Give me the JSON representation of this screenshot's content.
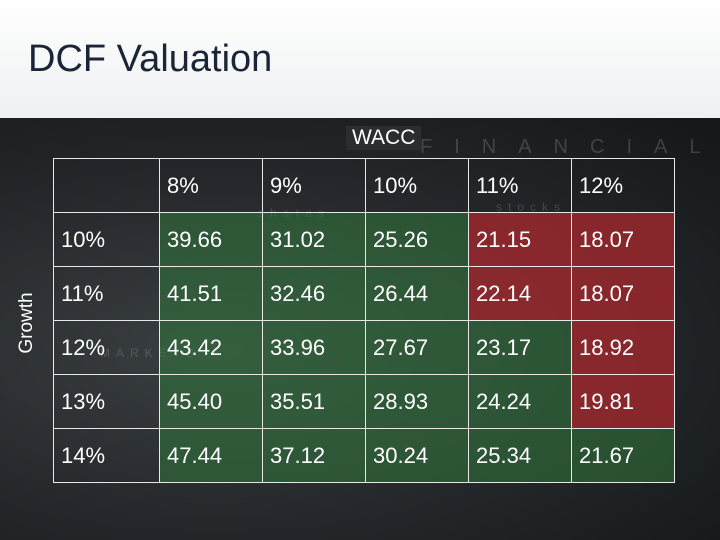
{
  "title": "DCF Valuation",
  "axis": {
    "columns_label": "WACC",
    "rows_label": "Growth"
  },
  "watermark": {
    "w1": "FINANCIALS",
    "w2": "shares",
    "w3": "stocks",
    "w4": "MARKETS"
  },
  "colors": {
    "green": "#327838",
    "red": "#a5282d"
  },
  "table": {
    "columns": [
      "8%",
      "9%",
      "10%",
      "11%",
      "12%"
    ],
    "rows": [
      {
        "growth": "10%",
        "values": [
          "39.66",
          "31.02",
          "25.26",
          "21.15",
          "18.07"
        ]
      },
      {
        "growth": "11%",
        "values": [
          "41.51",
          "32.46",
          "26.44",
          "22.14",
          "18.07"
        ]
      },
      {
        "growth": "12%",
        "values": [
          "43.42",
          "33.96",
          "27.67",
          "23.17",
          "18.92"
        ]
      },
      {
        "growth": "13%",
        "values": [
          "45.40",
          "35.51",
          "28.93",
          "24.24",
          "19.81"
        ]
      },
      {
        "growth": "14%",
        "values": [
          "47.44",
          "37.12",
          "30.24",
          "25.34",
          "21.67"
        ]
      }
    ]
  }
}
